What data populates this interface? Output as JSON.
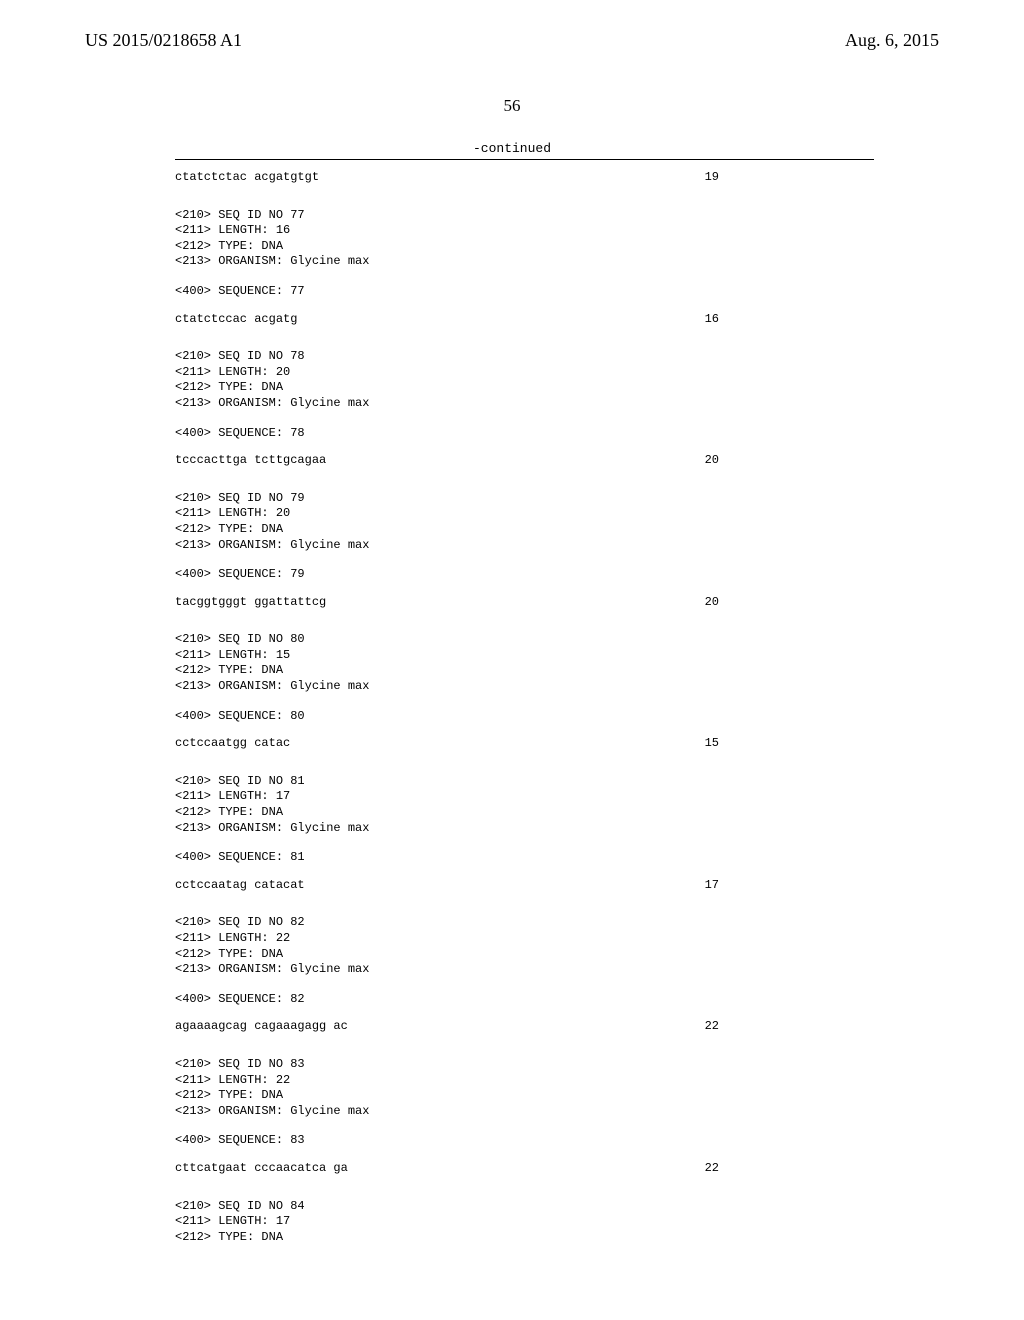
{
  "header": {
    "patent_number": "US 2015/0218658 A1",
    "date": "Aug. 6, 2015"
  },
  "page_number": "56",
  "continued_label": "-continued",
  "sequences": [
    {
      "first_data": {
        "sequence": "ctatctctac acgatgtgt",
        "length": "19"
      }
    },
    {
      "seq_id": "<210> SEQ ID NO 77",
      "length_line": "<211> LENGTH: 16",
      "type_line": "<212> TYPE: DNA",
      "organism": "<213> ORGANISM: Glycine max",
      "query": "<400> SEQUENCE: 77",
      "data": {
        "sequence": "ctatctccac acgatg",
        "length": "16"
      }
    },
    {
      "seq_id": "<210> SEQ ID NO 78",
      "length_line": "<211> LENGTH: 20",
      "type_line": "<212> TYPE: DNA",
      "organism": "<213> ORGANISM: Glycine max",
      "query": "<400> SEQUENCE: 78",
      "data": {
        "sequence": "tcccacttga tcttgcagaa",
        "length": "20"
      }
    },
    {
      "seq_id": "<210> SEQ ID NO 79",
      "length_line": "<211> LENGTH: 20",
      "type_line": "<212> TYPE: DNA",
      "organism": "<213> ORGANISM: Glycine max",
      "query": "<400> SEQUENCE: 79",
      "data": {
        "sequence": "tacggtgggt ggattattcg",
        "length": "20"
      }
    },
    {
      "seq_id": "<210> SEQ ID NO 80",
      "length_line": "<211> LENGTH: 15",
      "type_line": "<212> TYPE: DNA",
      "organism": "<213> ORGANISM: Glycine max",
      "query": "<400> SEQUENCE: 80",
      "data": {
        "sequence": "cctccaatgg catac",
        "length": "15"
      }
    },
    {
      "seq_id": "<210> SEQ ID NO 81",
      "length_line": "<211> LENGTH: 17",
      "type_line": "<212> TYPE: DNA",
      "organism": "<213> ORGANISM: Glycine max",
      "query": "<400> SEQUENCE: 81",
      "data": {
        "sequence": "cctccaatag catacat",
        "length": "17"
      }
    },
    {
      "seq_id": "<210> SEQ ID NO 82",
      "length_line": "<211> LENGTH: 22",
      "type_line": "<212> TYPE: DNA",
      "organism": "<213> ORGANISM: Glycine max",
      "query": "<400> SEQUENCE: 82",
      "data": {
        "sequence": "agaaaagcag cagaaagagg ac",
        "length": "22"
      }
    },
    {
      "seq_id": "<210> SEQ ID NO 83",
      "length_line": "<211> LENGTH: 22",
      "type_line": "<212> TYPE: DNA",
      "organism": "<213> ORGANISM: Glycine max",
      "query": "<400> SEQUENCE: 83",
      "data": {
        "sequence": "cttcatgaat cccaacatca ga",
        "length": "22"
      }
    },
    {
      "seq_id": "<210> SEQ ID NO 84",
      "length_line": "<211> LENGTH: 17",
      "type_line": "<212> TYPE: DNA",
      "partial": true
    }
  ]
}
